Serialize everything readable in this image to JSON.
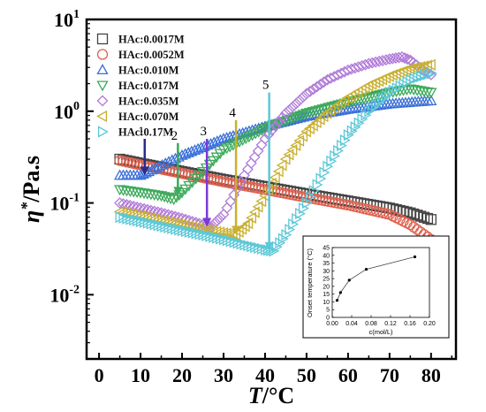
{
  "chart_data": [
    {
      "type": "scatter",
      "title": "",
      "xlabel_italic": "T",
      "xlabel_unit": "/°C",
      "ylabel_symbol": "η",
      "ylabel_sup": "*",
      "ylabel_unit": "/Pa.s",
      "xlim": [
        -3,
        86
      ],
      "ylim_log10": [
        -2.7,
        1
      ],
      "y_scale": "log",
      "grid": false,
      "legend_position": "top-left",
      "x_ticks": [
        "0",
        "10",
        "20",
        "30",
        "40",
        "50",
        "60",
        "70",
        "80"
      ],
      "y_ticks": [
        {
          "base": "10",
          "exp": "-2"
        },
        {
          "base": "10",
          "exp": "-1"
        },
        {
          "base": "10",
          "exp": "0"
        },
        {
          "base": "10",
          "exp": "1"
        }
      ],
      "series": [
        {
          "name": "HAc:0.0017M",
          "color": "#444444",
          "marker": "square",
          "points": [
            [
              5,
              0.3
            ],
            [
              10,
              0.27
            ],
            [
              20,
              0.22
            ],
            [
              30,
              0.18
            ],
            [
              40,
              0.15
            ],
            [
              50,
              0.125
            ],
            [
              60,
              0.105
            ],
            [
              70,
              0.088
            ],
            [
              75,
              0.078
            ],
            [
              80,
              0.066
            ]
          ]
        },
        {
          "name": "HAc:0.0052M",
          "color": "#e0614f",
          "marker": "circle",
          "points": [
            [
              5,
              0.29
            ],
            [
              10,
              0.26
            ],
            [
              20,
              0.21
            ],
            [
              30,
              0.17
            ],
            [
              40,
              0.14
            ],
            [
              50,
              0.115
            ],
            [
              60,
              0.095
            ],
            [
              70,
              0.075
            ],
            [
              75,
              0.058
            ],
            [
              80,
              0.04
            ]
          ]
        },
        {
          "name": "HAc:0.010M",
          "color": "#3a6fd8",
          "marker": "triangle-up",
          "points": [
            [
              5,
              0.2
            ],
            [
              10,
              0.2
            ],
            [
              12,
              0.22
            ],
            [
              20,
              0.33
            ],
            [
              30,
              0.5
            ],
            [
              40,
              0.68
            ],
            [
              50,
              0.88
            ],
            [
              60,
              1.05
            ],
            [
              70,
              1.2
            ],
            [
              80,
              1.3
            ]
          ]
        },
        {
          "name": "HAc:0.017M",
          "color": "#3caa5a",
          "marker": "triangle-down",
          "points": [
            [
              5,
              0.14
            ],
            [
              10,
              0.13
            ],
            [
              15,
              0.12
            ],
            [
              18,
              0.11
            ],
            [
              20,
              0.13
            ],
            [
              25,
              0.22
            ],
            [
              30,
              0.38
            ],
            [
              40,
              0.65
            ],
            [
              50,
              0.95
            ],
            [
              60,
              1.25
            ],
            [
              70,
              1.6
            ],
            [
              75,
              1.75
            ],
            [
              80,
              1.6
            ]
          ]
        },
        {
          "name": "HAc:0.035M",
          "color": "#b07ad8",
          "marker": "diamond",
          "points": [
            [
              5,
              0.1
            ],
            [
              10,
              0.088
            ],
            [
              15,
              0.078
            ],
            [
              20,
              0.068
            ],
            [
              25,
              0.058
            ],
            [
              27,
              0.055
            ],
            [
              30,
              0.075
            ],
            [
              35,
              0.2
            ],
            [
              40,
              0.5
            ],
            [
              45,
              0.95
            ],
            [
              50,
              1.55
            ],
            [
              55,
              2.2
            ],
            [
              60,
              2.8
            ],
            [
              65,
              3.3
            ],
            [
              70,
              3.7
            ],
            [
              73,
              3.9
            ],
            [
              75,
              3.6
            ],
            [
              78,
              2.8
            ],
            [
              80,
              2.5
            ]
          ]
        },
        {
          "name": "HAc:0.070M",
          "color": "#c8b030",
          "marker": "triangle-left",
          "points": [
            [
              5,
              0.08
            ],
            [
              10,
              0.072
            ],
            [
              15,
              0.064
            ],
            [
              20,
              0.058
            ],
            [
              25,
              0.052
            ],
            [
              30,
              0.047
            ],
            [
              33,
              0.045
            ],
            [
              36,
              0.06
            ],
            [
              40,
              0.12
            ],
            [
              45,
              0.3
            ],
            [
              50,
              0.6
            ],
            [
              55,
              0.95
            ],
            [
              60,
              1.4
            ],
            [
              65,
              1.9
            ],
            [
              70,
              2.4
            ],
            [
              75,
              2.9
            ],
            [
              80,
              3.2
            ]
          ]
        },
        {
          "name": "HAc:0.17M",
          "color": "#5cc8d8",
          "marker": "triangle-right",
          "points": [
            [
              5,
              0.07
            ],
            [
              10,
              0.063
            ],
            [
              15,
              0.056
            ],
            [
              20,
              0.05
            ],
            [
              25,
              0.045
            ],
            [
              30,
              0.04
            ],
            [
              35,
              0.035
            ],
            [
              40,
              0.031
            ],
            [
              42,
              0.03
            ],
            [
              45,
              0.045
            ],
            [
              50,
              0.1
            ],
            [
              55,
              0.25
            ],
            [
              60,
              0.55
            ],
            [
              65,
              1.0
            ],
            [
              70,
              1.6
            ],
            [
              75,
              2.2
            ],
            [
              80,
              2.6
            ]
          ]
        }
      ],
      "arrows": [
        {
          "label": "1",
          "x": 11,
          "y_from": 0.5,
          "y_to": 0.2,
          "color": "#2b2b8a"
        },
        {
          "label": "2",
          "x": 19,
          "y_from": 0.45,
          "y_to": 0.12,
          "color": "#3caa5a"
        },
        {
          "label": "3",
          "x": 26,
          "y_from": 0.5,
          "y_to": 0.055,
          "color": "#7a3ad8"
        },
        {
          "label": "4",
          "x": 33,
          "y_from": 0.8,
          "y_to": 0.045,
          "color": "#c8b030"
        },
        {
          "label": "5",
          "x": 41,
          "y_from": 1.6,
          "y_to": 0.03,
          "color": "#5cc8d8"
        }
      ]
    },
    {
      "type": "line",
      "title": "",
      "xlabel": "c(mol/L)",
      "ylabel": "Onset temperature (°C)",
      "xlim": [
        0,
        0.2
      ],
      "ylim": [
        0,
        45
      ],
      "x_ticks": [
        "0.00",
        "0.04",
        "0.08",
        "0.12",
        "0.16",
        "0.20"
      ],
      "y_ticks": [
        "0",
        "5",
        "10",
        "15",
        "20",
        "25",
        "30",
        "35",
        "40",
        "45"
      ],
      "x": [
        0.01,
        0.017,
        0.035,
        0.07,
        0.17
      ],
      "y": [
        11,
        16,
        24,
        31,
        39
      ]
    }
  ]
}
